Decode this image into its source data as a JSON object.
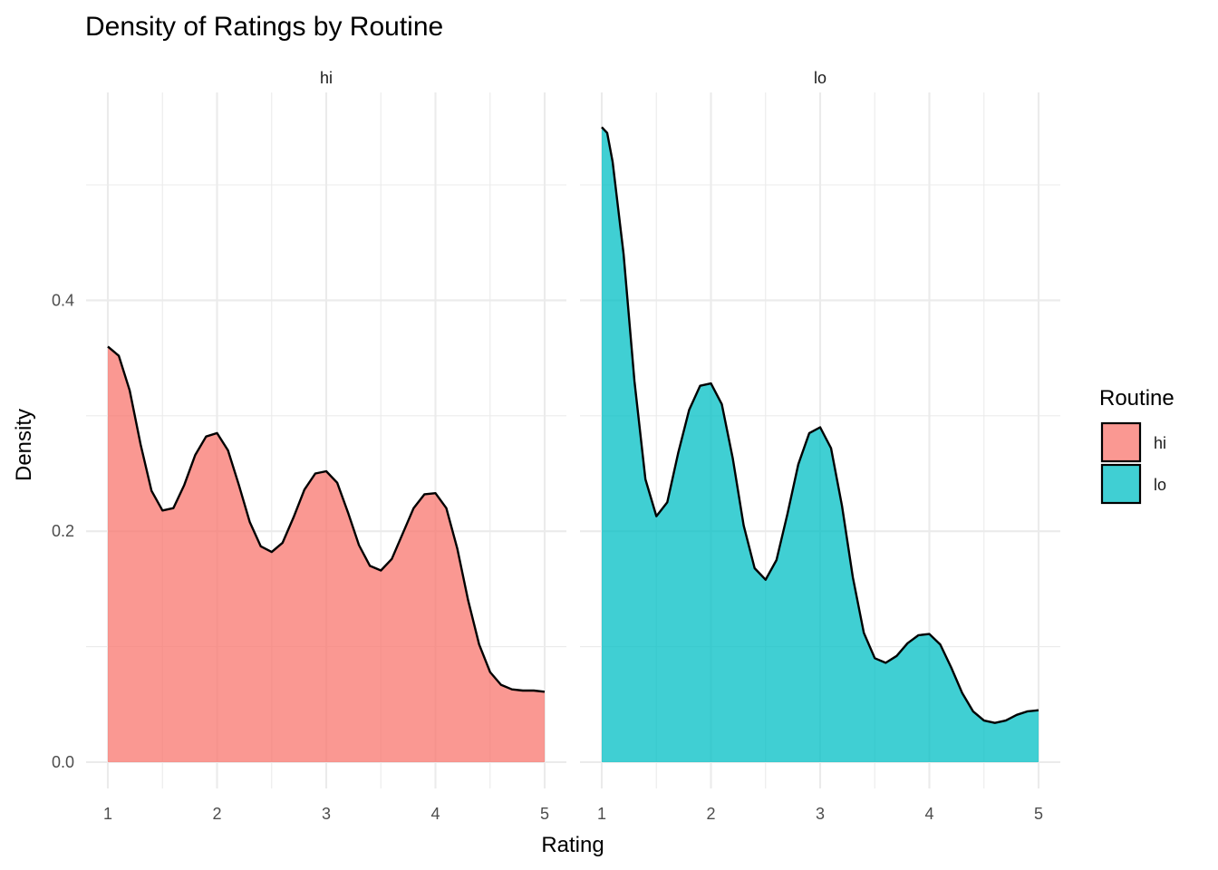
{
  "chart_data": {
    "type": "area",
    "title": "Density of Ratings by Routine",
    "xlabel": "Rating",
    "ylabel": "Density",
    "xlim": [
      1,
      5
    ],
    "ylim": [
      0,
      0.55
    ],
    "x_ticks": [
      1,
      2,
      3,
      4,
      5
    ],
    "y_ticks": [
      0.0,
      0.2,
      0.4
    ],
    "y_tick_labels": [
      "0.0",
      "0.2",
      "0.4"
    ],
    "grid": true,
    "legend": {
      "title": "Routine",
      "position": "right",
      "entries": [
        "hi",
        "lo"
      ]
    },
    "facets": [
      {
        "label": "hi",
        "color": "#F8766D",
        "points": [
          [
            1.0,
            0.36
          ],
          [
            1.1,
            0.352
          ],
          [
            1.2,
            0.322
          ],
          [
            1.3,
            0.275
          ],
          [
            1.4,
            0.235
          ],
          [
            1.5,
            0.218
          ],
          [
            1.6,
            0.22
          ],
          [
            1.7,
            0.24
          ],
          [
            1.8,
            0.266
          ],
          [
            1.9,
            0.282
          ],
          [
            2.0,
            0.285
          ],
          [
            2.1,
            0.27
          ],
          [
            2.2,
            0.24
          ],
          [
            2.3,
            0.208
          ],
          [
            2.4,
            0.187
          ],
          [
            2.5,
            0.182
          ],
          [
            2.6,
            0.19
          ],
          [
            2.7,
            0.212
          ],
          [
            2.8,
            0.236
          ],
          [
            2.9,
            0.25
          ],
          [
            3.0,
            0.252
          ],
          [
            3.1,
            0.242
          ],
          [
            3.2,
            0.216
          ],
          [
            3.3,
            0.188
          ],
          [
            3.4,
            0.17
          ],
          [
            3.5,
            0.166
          ],
          [
            3.6,
            0.176
          ],
          [
            3.7,
            0.198
          ],
          [
            3.8,
            0.22
          ],
          [
            3.9,
            0.232
          ],
          [
            4.0,
            0.233
          ],
          [
            4.1,
            0.22
          ],
          [
            4.2,
            0.185
          ],
          [
            4.3,
            0.14
          ],
          [
            4.4,
            0.102
          ],
          [
            4.5,
            0.078
          ],
          [
            4.6,
            0.067
          ],
          [
            4.7,
            0.063
          ],
          [
            4.8,
            0.062
          ],
          [
            4.9,
            0.062
          ],
          [
            5.0,
            0.061
          ]
        ]
      },
      {
        "label": "lo",
        "color": "#00BFC4",
        "points": [
          [
            1.0,
            0.55
          ],
          [
            1.05,
            0.545
          ],
          [
            1.1,
            0.52
          ],
          [
            1.2,
            0.44
          ],
          [
            1.3,
            0.33
          ],
          [
            1.4,
            0.245
          ],
          [
            1.5,
            0.213
          ],
          [
            1.6,
            0.225
          ],
          [
            1.7,
            0.268
          ],
          [
            1.8,
            0.305
          ],
          [
            1.9,
            0.326
          ],
          [
            2.0,
            0.328
          ],
          [
            2.1,
            0.31
          ],
          [
            2.2,
            0.263
          ],
          [
            2.3,
            0.205
          ],
          [
            2.4,
            0.168
          ],
          [
            2.5,
            0.158
          ],
          [
            2.6,
            0.175
          ],
          [
            2.7,
            0.215
          ],
          [
            2.8,
            0.258
          ],
          [
            2.9,
            0.285
          ],
          [
            3.0,
            0.29
          ],
          [
            3.1,
            0.272
          ],
          [
            3.2,
            0.222
          ],
          [
            3.3,
            0.16
          ],
          [
            3.4,
            0.112
          ],
          [
            3.5,
            0.09
          ],
          [
            3.6,
            0.086
          ],
          [
            3.7,
            0.092
          ],
          [
            3.8,
            0.103
          ],
          [
            3.9,
            0.11
          ],
          [
            4.0,
            0.111
          ],
          [
            4.1,
            0.102
          ],
          [
            4.2,
            0.082
          ],
          [
            4.3,
            0.06
          ],
          [
            4.4,
            0.044
          ],
          [
            4.5,
            0.036
          ],
          [
            4.6,
            0.034
          ],
          [
            4.7,
            0.036
          ],
          [
            4.8,
            0.041
          ],
          [
            4.9,
            0.044
          ],
          [
            5.0,
            0.045
          ]
        ]
      }
    ]
  }
}
